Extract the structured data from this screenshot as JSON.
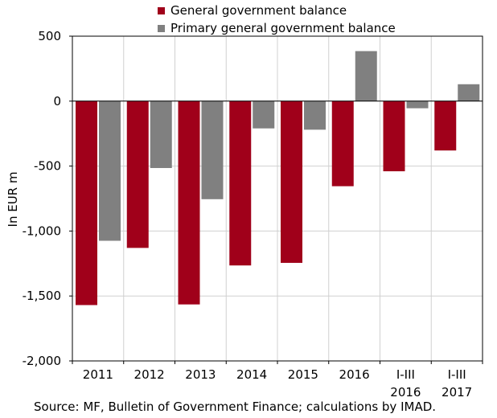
{
  "chart_data": {
    "type": "bar",
    "categories": [
      [
        "2011"
      ],
      [
        "2012"
      ],
      [
        "2013"
      ],
      [
        "2014"
      ],
      [
        "2015"
      ],
      [
        "2016"
      ],
      [
        "I-III",
        "2016"
      ],
      [
        "I-III",
        "2017"
      ]
    ],
    "series": [
      {
        "name": "General government balance",
        "color": "#a0001a",
        "values": [
          -1570,
          -1130,
          -1565,
          -1265,
          -1245,
          -655,
          -540,
          -380
        ]
      },
      {
        "name": "Primary general government balance",
        "color": "#808080",
        "values": [
          -1075,
          -515,
          -755,
          -210,
          -220,
          385,
          -55,
          130
        ]
      }
    ],
    "ylabel": "In EUR m",
    "ylim": [
      -2000,
      500
    ],
    "yticks": [
      500,
      0,
      -500,
      -1000,
      -1500,
      -2000
    ],
    "ytick_labels": [
      "500",
      "0",
      "-500",
      "-1,000",
      "-1,500",
      "-2,000"
    ],
    "grid": true,
    "legend_position": "top"
  },
  "source": "Source: MF, Bulletin of Government Finance; calculations by IMAD."
}
